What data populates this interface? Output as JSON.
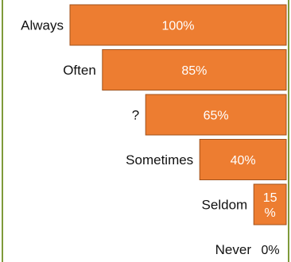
{
  "chart_data": {
    "type": "bar",
    "orientation": "horizontal",
    "alignment": "right",
    "categories": [
      "Always",
      "Often",
      "?",
      "Sometimes",
      "Seldom",
      "Never"
    ],
    "values": [
      100,
      85,
      65,
      40,
      15,
      0
    ],
    "value_labels": [
      "100%",
      "85%",
      "65%",
      "40%",
      "15\n%",
      "0%"
    ],
    "xlim": [
      0,
      100
    ],
    "title": "",
    "xlabel": "",
    "ylabel": "",
    "legend": "none",
    "grid": false,
    "colors": {
      "bar": "#ed7d31",
      "bar_border": "#a0521c",
      "frame": "#7f9a3a"
    }
  }
}
